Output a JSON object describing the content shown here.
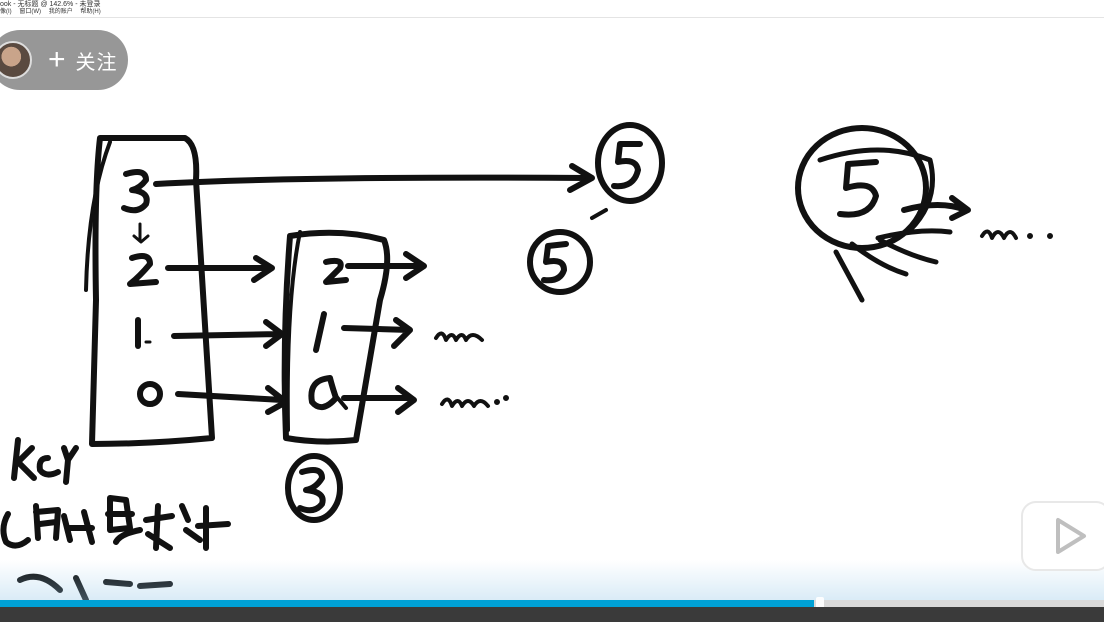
{
  "window": {
    "title": "ook - 无标题 @ 142.6% - 未登录",
    "menu": [
      "像(I)",
      "窗口(W)",
      "我的账户",
      "帮助(H)"
    ]
  },
  "overlay": {
    "follow_plus": "+",
    "follow_label": "关注"
  },
  "player": {
    "progress_fraction": 0.737
  },
  "colors": {
    "accent": "#00a1d6",
    "ink": "#111111"
  },
  "icons": {
    "avatar": "avatar",
    "play": "play-icon",
    "tv": "bilibili-tv-icon"
  }
}
